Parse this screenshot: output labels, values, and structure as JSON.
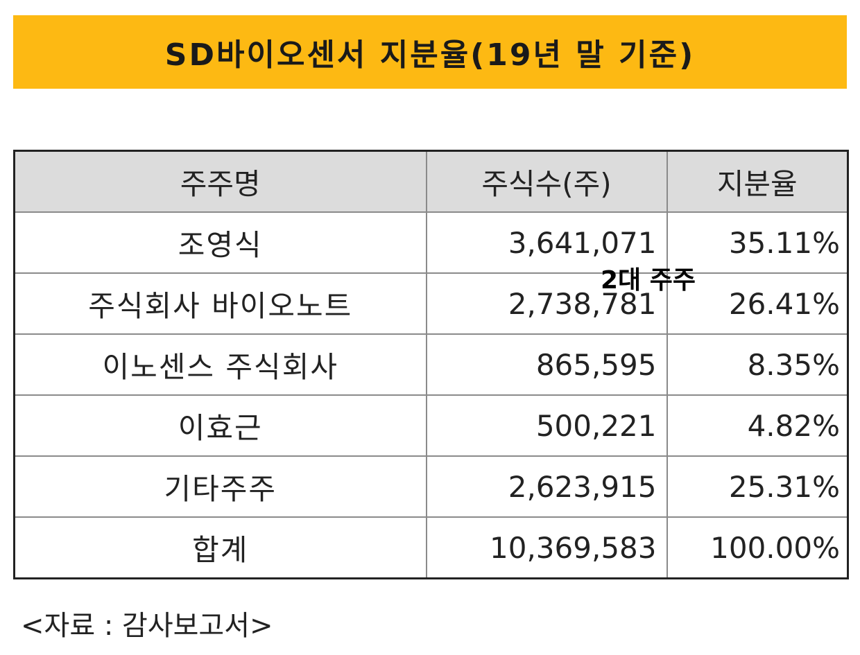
{
  "title": "SD바이오센서 지분율(19년 말 기준)",
  "colors": {
    "banner_background": "#fdb913",
    "header_background": "#dcdcdc"
  },
  "table": {
    "headers": [
      "주주명",
      "주식수(주)",
      "지분율"
    ],
    "rows": [
      {
        "name": "조영식",
        "shares": "3,641,071",
        "ratio": "35.11%"
      },
      {
        "name": "주식회사 바이오노트",
        "shares": "2,738,781",
        "ratio": "26.41%"
      },
      {
        "name": "이노센스 주식회사",
        "shares": "865,595",
        "ratio": "8.35%"
      },
      {
        "name": "이효근",
        "shares": "500,221",
        "ratio": "4.82%"
      },
      {
        "name": "기타주주",
        "shares": "2,623,915",
        "ratio": "25.31%"
      },
      {
        "name": "합계",
        "shares": "10,369,583",
        "ratio": "100.00%"
      }
    ]
  },
  "annotation": "2대 주주",
  "source": "<자료 : 감사보고서>"
}
